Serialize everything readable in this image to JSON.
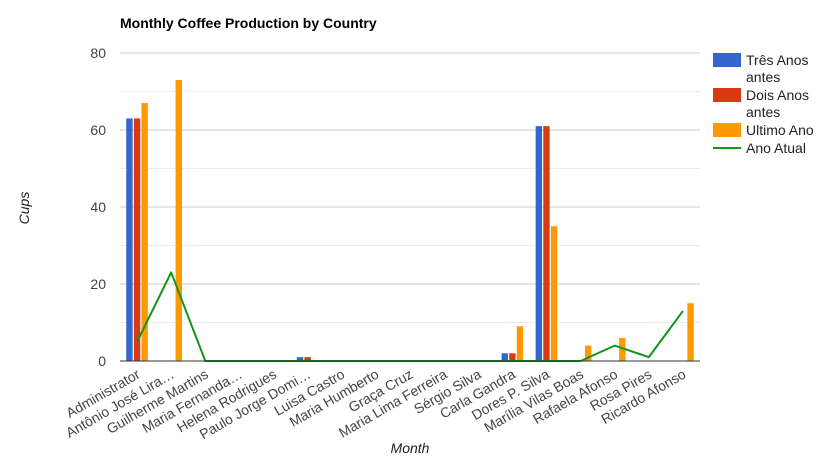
{
  "chart_data": {
    "type": "bar",
    "title": "Monthly Coffee Production by Country",
    "xlabel": "Month",
    "ylabel": "Cups",
    "ylim": [
      0,
      80
    ],
    "yticks": [
      0,
      20,
      40,
      60,
      80
    ],
    "grid": true,
    "legend_position": "right",
    "categories": [
      "Administrator",
      "Antônio José Lira…",
      "Guilherme Martins",
      "Maria Fernanda…",
      "Helena Rodrigues",
      "Paulo Jorge Domi…",
      "Luisa Castro",
      "Maria Humberto",
      "Graça Cruz",
      "Maria Lima Ferreira",
      "Sérgio Silva",
      "Carla Gandra",
      "Dores P. Silva",
      "Marília Vilas Boas",
      "Rafaela Afonso",
      "Rosa Pires",
      "Ricardo Afonso"
    ],
    "series": [
      {
        "name": "Três Anos antes",
        "name_lines": [
          "Três Anos",
          "antes"
        ],
        "kind": "bar",
        "color": "#3366cc",
        "values": [
          63,
          0,
          0,
          0,
          0,
          1,
          0,
          0,
          0,
          0,
          0,
          2,
          61,
          0,
          0,
          0,
          0
        ]
      },
      {
        "name": "Dois Anos antes",
        "name_lines": [
          "Dois Anos",
          "antes"
        ],
        "kind": "bar",
        "color": "#dc3912",
        "values": [
          63,
          0,
          0,
          0,
          0,
          1,
          0,
          0,
          0,
          0,
          0,
          2,
          61,
          0,
          0,
          0,
          0
        ]
      },
      {
        "name": "Ultimo Ano",
        "name_lines": [
          "Ultimo Ano"
        ],
        "kind": "bar",
        "color": "#ff9900",
        "values": [
          67,
          73,
          0,
          0,
          0,
          0,
          0,
          0,
          0,
          0,
          0,
          9,
          35,
          4,
          6,
          0,
          15
        ]
      },
      {
        "name": "Ano Atual",
        "name_lines": [
          "Ano Atual"
        ],
        "kind": "line",
        "color": "#109618",
        "values": [
          5,
          23,
          0,
          0,
          0,
          0,
          0,
          0,
          0,
          0,
          0,
          0,
          0,
          0,
          4,
          1,
          13
        ]
      }
    ]
  }
}
